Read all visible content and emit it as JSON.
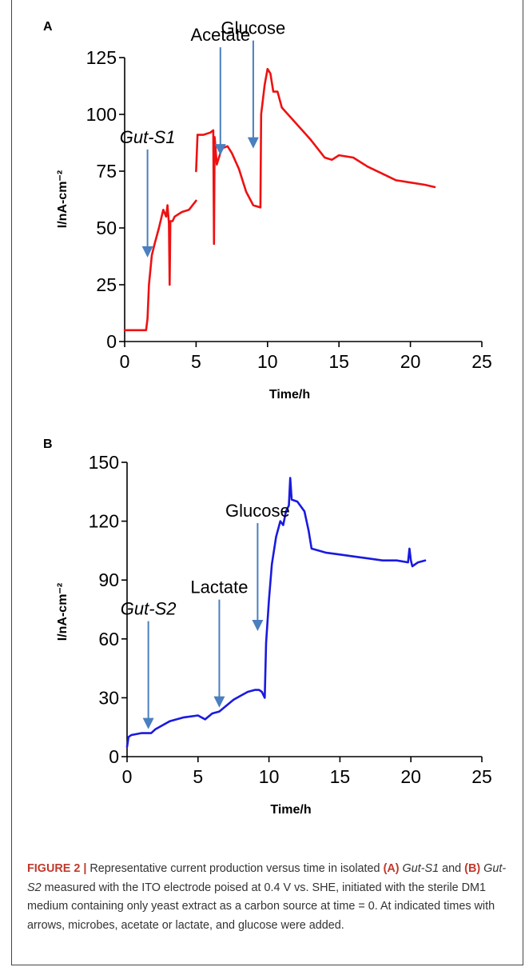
{
  "figure": {
    "panels": [
      {
        "letter": "A"
      },
      {
        "letter": "B"
      }
    ],
    "caption": {
      "label": "FIGURE 2 |",
      "t1": " Representative current production versus time in isolated ",
      "a": "(A)",
      "s1": "Gut-S1",
      "t2": " and ",
      "b": "(B)",
      "s2": "Gut-S2",
      "t3": " measured with the ITO electrode poised at 0.4 V vs. SHE, initiated with the sterile DM1 medium containing only yeast extract as a carbon source at time = 0. At indicated times with arrows, microbes, acetate or lactate, and glucose were added."
    }
  },
  "chart_data": [
    {
      "type": "line",
      "panel": "A",
      "xlabel": "Time/h",
      "ylabel": "I/nA-cm⁻²",
      "xlim": [
        0,
        25
      ],
      "ylim": [
        0,
        125
      ],
      "xticks": [
        "0",
        "5",
        "10",
        "15",
        "20",
        "25"
      ],
      "yticks": [
        "0",
        "25",
        "50",
        "75",
        "100",
        "125"
      ],
      "color": "#ee1111",
      "grid": false,
      "segments": [
        {
          "x": [
            0,
            1.5,
            1.6,
            1.7,
            1.9,
            2.1,
            2.4,
            2.7,
            2.9,
            3.0,
            3.1,
            3.15,
            3.2,
            3.35,
            3.5,
            4.0,
            4.5,
            5.0
          ],
          "y": [
            5,
            5,
            10,
            25,
            38,
            43,
            50,
            58,
            55,
            60,
            52,
            25,
            53,
            53,
            55,
            57,
            58,
            62
          ]
        },
        {
          "x": [
            5.0,
            5.1
          ],
          "y": [
            75,
            91
          ]
        },
        {
          "x": [
            5.1,
            5.5,
            6.0,
            6.2,
            6.25,
            6.3,
            6.45
          ],
          "y": [
            91,
            91,
            92,
            93,
            43,
            90,
            78
          ]
        },
        {
          "x": [
            6.45,
            6.8,
            7.2,
            7.5,
            8.0,
            8.5,
            9.0,
            9.5,
            9.55,
            9.8,
            10.0,
            10.2,
            10.4,
            10.7,
            11.0,
            12.0,
            13.0,
            14.0,
            14.5,
            15.0,
            16.0,
            17.0,
            18.0,
            19.0,
            20.0,
            21.0,
            21.7
          ],
          "y": [
            78,
            85,
            86,
            83,
            76,
            66,
            60,
            59,
            100,
            113,
            120,
            118,
            110,
            110,
            103,
            96,
            89,
            81,
            80,
            82,
            81,
            77,
            74,
            71,
            70,
            69,
            68
          ]
        }
      ],
      "annotations": [
        {
          "text": "Gut-S1",
          "italic": true,
          "x": 1.6,
          "y": 37
        },
        {
          "text": "Acetate",
          "italic": false,
          "x": 6.7,
          "y": 82
        },
        {
          "text": "Glucose",
          "italic": false,
          "x": 9.0,
          "y": 85
        }
      ]
    },
    {
      "type": "line",
      "panel": "B",
      "xlabel": "Time/h",
      "ylabel": "I/nA-cm⁻²",
      "xlim": [
        0,
        25
      ],
      "ylim": [
        0,
        150
      ],
      "xticks": [
        "0",
        "5",
        "10",
        "15",
        "20",
        "25"
      ],
      "yticks": [
        "0",
        "30",
        "60",
        "90",
        "120",
        "150"
      ],
      "color": "#1a1ae0",
      "grid": false,
      "segments": [
        {
          "x": [
            0,
            0.1,
            0.3,
            1.0,
            1.7,
            2.0,
            2.5,
            3.0,
            4.0,
            5.0,
            5.5,
            6.0,
            6.5,
            7.0,
            7.5,
            8.0,
            8.5,
            9.0,
            9.3,
            9.5,
            9.7,
            9.8,
            10.0,
            10.2,
            10.5,
            10.8,
            11.0,
            11.2,
            11.4,
            11.5,
            11.6,
            12.0,
            12.5,
            12.8,
            13.0,
            13.5,
            14.0,
            15.0,
            16.0,
            17.0,
            18.0,
            19.0,
            19.8,
            19.9,
            20.0,
            20.1,
            20.5,
            21.0
          ],
          "y": [
            5,
            10,
            11,
            12,
            12,
            14,
            16,
            18,
            20,
            21,
            19,
            22,
            23,
            26,
            29,
            31,
            33,
            34,
            34,
            33,
            30,
            58,
            80,
            98,
            112,
            120,
            118,
            125,
            128,
            142,
            131,
            130,
            125,
            115,
            106,
            105,
            104,
            103,
            102,
            101,
            100,
            100,
            99,
            106,
            100,
            97,
            99,
            100
          ]
        }
      ],
      "annotations": [
        {
          "text": "Gut-S2",
          "italic": true,
          "x": 1.5,
          "y": 14
        },
        {
          "text": "Lactate",
          "italic": false,
          "x": 6.5,
          "y": 25
        },
        {
          "text": "Glucose",
          "italic": false,
          "x": 9.2,
          "y": 64
        }
      ]
    }
  ]
}
